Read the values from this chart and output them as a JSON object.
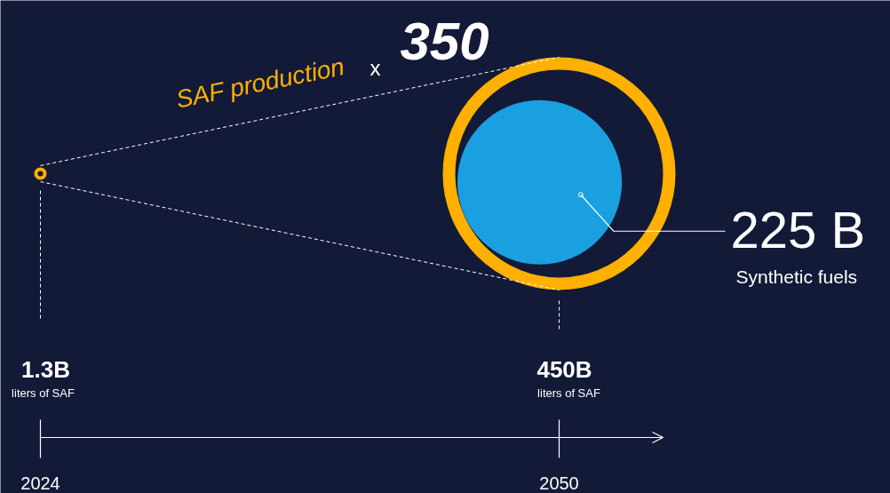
{
  "chart_data": {
    "type": "other",
    "title": "SAF production",
    "categories": [
      "2024",
      "2050"
    ],
    "series": [
      {
        "color": "#ffb000",
        "values": [
          1300000000,
          450000000000
        ],
        "value_labels": [
          "1.3B",
          "450B"
        ]
      },
      {
        "color": "#1a9fe0",
        "values": [
          null,
          225000000000
        ],
        "value_labels": [
          null,
          "225 B"
        ]
      }
    ],
    "annotations": [
      "x",
      "350",
      "liters of SAF",
      "liters of SAF",
      "Synthetic fuels"
    ]
  }
}
